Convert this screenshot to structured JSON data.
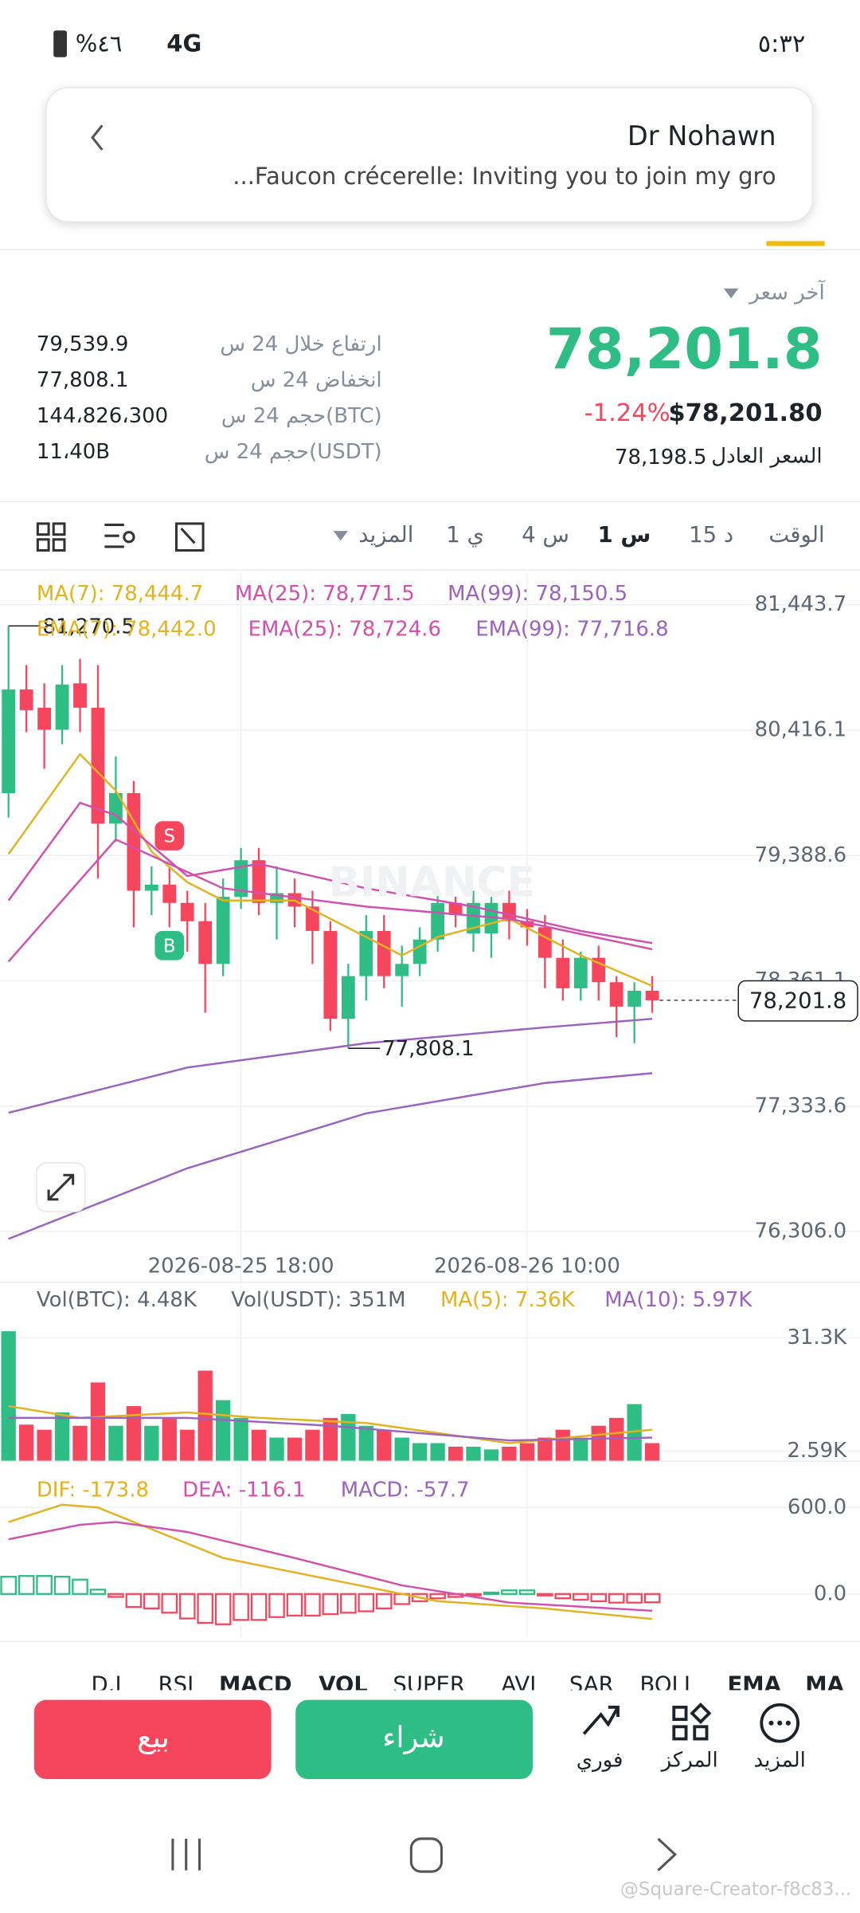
{
  "status_bar": {
    "battery": "%٤٦",
    "network": "4G",
    "time": "٥:٣٢"
  },
  "notification": {
    "title": "Dr Nohawn",
    "body": "...Faucon crécerelle: Inviting you to join my gro"
  },
  "ticker": {
    "last_price_label": "آخر سعر",
    "last_price": "78,201.8",
    "usd_price": "$78,201.80",
    "change": "-1.24%",
    "fair_price_label": "السعر العادل",
    "fair_price": "78,198.5",
    "stats": [
      {
        "label": "ارتفاع خلال 24 س",
        "value": "79,539.9"
      },
      {
        "label": "انخفاض 24 س",
        "value": "77,808.1"
      },
      {
        "label": "حجم 24 س(BTC)",
        "value": "144،826،300"
      },
      {
        "label": "حجم 24 س(USDT)",
        "value": "11،40B"
      }
    ]
  },
  "timeframes": {
    "items": [
      "الوقت",
      "15 د",
      "1 س",
      "4 س",
      "1 ي",
      "المزيد"
    ],
    "selected": 2
  },
  "price_chart": {
    "type": "candlestick",
    "watermark": "BINANCE",
    "legend": [
      {
        "text": "MA(7): 78,444.7",
        "color": "#e3b21f"
      },
      {
        "text": "MA(25): 78,771.5",
        "color": "#d24fae"
      },
      {
        "text": "MA(99): 78,150.5",
        "color": "#9b62c0"
      },
      {
        "text": "EMA(7): 78,442.0",
        "color": "#e3b21f"
      },
      {
        "text": "EMA(25): 78,724.6",
        "color": "#d24fae"
      },
      {
        "text": "EMA(99): 77,716.8",
        "color": "#9b62c0"
      }
    ],
    "ylim": [
      76200,
      81660
    ],
    "yticks": [
      {
        "value": 81443.7,
        "label": "81,443.7"
      },
      {
        "value": 80416.1,
        "label": "80,416.1"
      },
      {
        "value": 79388.6,
        "label": "79,388.6"
      },
      {
        "value": 78361.1,
        "label": "78,361.1"
      },
      {
        "value": 77333.6,
        "label": "77,333.6"
      },
      {
        "value": 76306.0,
        "label": "76,306.0"
      }
    ],
    "xticks": [
      {
        "value": 13,
        "label": "2026-08-25 18:00"
      },
      {
        "value": 29,
        "label": "2026-08-26 10:00"
      }
    ],
    "open": [
      79900,
      80750,
      80600,
      80420,
      80800,
      80600,
      79650,
      79900,
      79100,
      79150,
      79000,
      78850,
      78500,
      79050,
      79350,
      79000,
      79080,
      78970,
      78770,
      78050,
      78400,
      78770,
      78400,
      78500,
      78700,
      79000,
      78750,
      78750,
      79000,
      78850,
      78800,
      78550,
      78300,
      78550,
      78350,
      78150,
      78280
    ],
    "close": [
      80750,
      80580,
      80420,
      80790,
      80600,
      79650,
      79900,
      79100,
      79150,
      79000,
      78850,
      78500,
      79050,
      79350,
      79000,
      79080,
      78970,
      78770,
      78050,
      78400,
      78770,
      78400,
      78500,
      78700,
      79000,
      78900,
      79000,
      79000,
      78850,
      78800,
      78550,
      78300,
      78550,
      78350,
      78150,
      78280,
      78201.8
    ],
    "high": [
      81270.5,
      80950,
      80800,
      80950,
      81000,
      80950,
      80200,
      80000,
      79300,
      79300,
      79100,
      79000,
      79200,
      79450,
      79450,
      79300,
      79200,
      79100,
      78850,
      78500,
      78900,
      78900,
      78650,
      78800,
      79100,
      79050,
      79100,
      79050,
      79100,
      78950,
      78900,
      78700,
      78600,
      78650,
      78400,
      78350,
      78400
    ],
    "low": [
      79700,
      80400,
      80100,
      80300,
      80400,
      79200,
      79500,
      78800,
      78900,
      78800,
      78600,
      78100,
      78400,
      78950,
      78900,
      78700,
      78800,
      78500,
      77950,
      77808.1,
      78200,
      78300,
      78150,
      78400,
      78600,
      78800,
      78600,
      78550,
      78700,
      78650,
      78300,
      78200,
      78200,
      78200,
      77900,
      77850,
      78100
    ],
    "up_color": "#2ebd85",
    "down_color": "#f6465d",
    "lines": [
      {
        "color": "#e3b21f",
        "x": [
          0,
          4,
          6,
          8,
          10,
          12,
          16,
          20,
          22,
          24,
          28,
          32,
          36
        ],
        "values": [
          79400,
          80220,
          79920,
          79420,
          79170,
          79020,
          79020,
          78720,
          78570,
          78720,
          78870,
          78570,
          78320
        ]
      },
      {
        "color": "#d24fae",
        "x": [
          0,
          4,
          6,
          10,
          14,
          20,
          26,
          32,
          36
        ],
        "values": [
          79020,
          79820,
          79720,
          79220,
          79320,
          79120,
          78970,
          78770,
          78670
        ]
      },
      {
        "color": "#d24fae",
        "x": [
          0,
          6,
          12,
          20,
          28,
          36
        ],
        "values": [
          78520,
          79520,
          79120,
          78970,
          78870,
          78620
        ]
      },
      {
        "color": "#9b62c0",
        "x": [
          0,
          10,
          20,
          30,
          36
        ],
        "values": [
          77280,
          77650,
          77850,
          77980,
          78050
        ]
      },
      {
        "color": "#9b62c0",
        "x": [
          0,
          10,
          20,
          30,
          36
        ],
        "values": [
          76246,
          76825,
          77275,
          77524,
          77604
        ]
      }
    ],
    "annotations": [
      {
        "index": 0,
        "value": 81270.5,
        "label": "81,270.5"
      },
      {
        "index": 19,
        "value": 77808.1,
        "label": "77,808.1"
      }
    ],
    "last_tag": {
      "value": 78201.8,
      "label": "78,201.8"
    },
    "signals": [
      {
        "index": 9,
        "value": 79550,
        "label": "S",
        "color": "#f6465d"
      },
      {
        "index": 9,
        "value": 78650,
        "label": "B",
        "color": "#2ebd85"
      }
    ]
  },
  "volume_chart": {
    "type": "bar",
    "legend": [
      {
        "text": "Vol(BTC): 4.48K",
        "color": "#5e6673"
      },
      {
        "text": "Vol(USDT): 351M",
        "color": "#5e6673"
      },
      {
        "text": "MA(5): 7.36K",
        "color": "#e3b21f"
      },
      {
        "text": "MA(10): 5.97K",
        "color": "#9b62c0"
      }
    ],
    "ylim": [
      0,
      34
    ],
    "yticks": [
      {
        "value": 31.3,
        "label": "31.3K"
      },
      {
        "value": 2.59,
        "label": "2.59K"
      }
    ],
    "values": [
      33,
      9.3,
      8,
      12.4,
      9,
      20,
      9,
      14,
      9,
      11,
      8,
      23,
      15.5,
      11,
      8,
      6,
      6,
      8,
      11,
      12,
      9,
      8,
      6,
      4.6,
      4.6,
      3.7,
      3.7,
      3,
      3.7,
      4.6,
      6,
      8,
      6,
      9,
      11,
      14.5,
      4.6
    ],
    "lines": [
      {
        "color": "#e3b21f",
        "x": [
          0,
          4,
          10,
          14,
          20,
          28,
          36
        ],
        "values": [
          14,
          11,
          12.4,
          11,
          9.7,
          4.6,
          8
        ]
      },
      {
        "color": "#9b62c0",
        "x": [
          0,
          10,
          18,
          28,
          36
        ],
        "values": [
          11,
          11,
          9,
          5.3,
          6
        ]
      }
    ]
  },
  "macd_chart": {
    "type": "bar",
    "legend": [
      {
        "text": "DIF: -173.8",
        "color": "#e3b21f"
      },
      {
        "text": "DEA: -116.1",
        "color": "#d24fae"
      },
      {
        "text": "MACD: -57.7",
        "color": "#9b62c0"
      }
    ],
    "ylim": [
      -304,
      879
    ],
    "yticks": [
      {
        "value": 600,
        "label": "600.0"
      },
      {
        "value": 0,
        "label": "0.0"
      }
    ],
    "values": [
      120,
      125,
      125,
      120,
      100,
      30,
      -20,
      -90,
      -100,
      -130,
      -170,
      -200,
      -210,
      -180,
      -180,
      -160,
      -150,
      -150,
      -140,
      -130,
      -120,
      -100,
      -70,
      -50,
      -30,
      -20,
      -10,
      10,
      25,
      25,
      -10,
      -30,
      -40,
      -50,
      -60,
      -60,
      -57.7
    ],
    "lines": [
      {
        "color": "#e3b21f",
        "x": [
          0,
          3,
          5,
          8,
          12,
          18,
          24,
          30,
          36
        ],
        "values": [
          500,
          620,
          600,
          450,
          250,
          100,
          -50,
          -100,
          -173.8
        ]
      },
      {
        "color": "#d24fae",
        "x": [
          0,
          4,
          6,
          10,
          16,
          22,
          28,
          36
        ],
        "values": [
          380,
          480,
          500,
          430,
          250,
          60,
          -60,
          -116.1
        ]
      }
    ]
  },
  "indicator_tabs": [
    "D.I",
    "RSI",
    "MACD",
    "VOL",
    "SUPER",
    "AVL",
    "SAR",
    "BOLL",
    "EMA",
    "MA"
  ],
  "actions": {
    "sell": "بيع",
    "buy": "شراء",
    "spot": "فوري",
    "position": "المركز",
    "more": "المزيد"
  },
  "watermark": "@Square-Creator-f8c83..."
}
